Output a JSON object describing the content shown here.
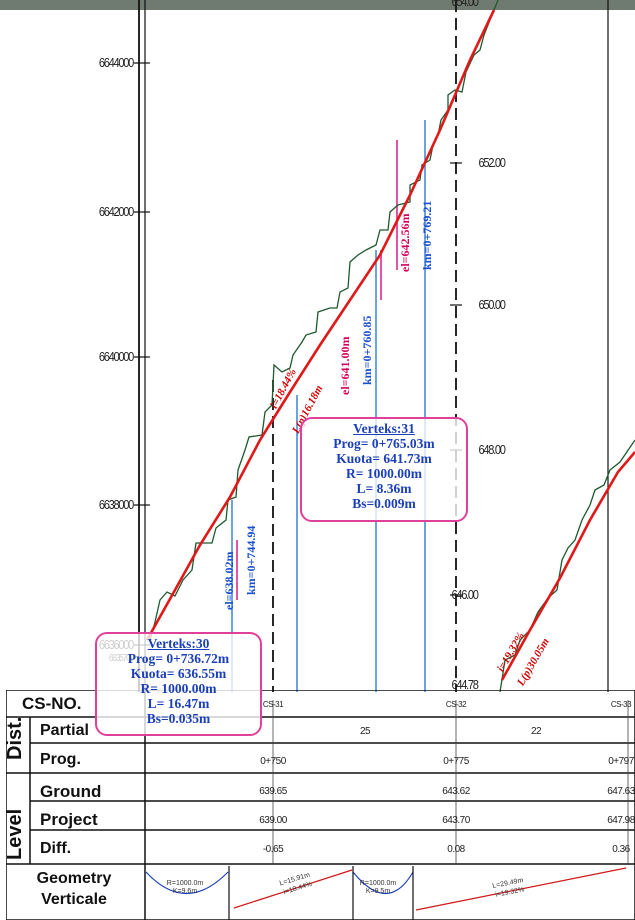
{
  "left_axis_ticks": [
    "6644000",
    "6642000",
    "6640000",
    "6638000",
    "6636000",
    "6635700"
  ],
  "right_axis_ticks": [
    "654.00",
    "652.00",
    "650.00",
    "648.00",
    "646.00",
    "644.78"
  ],
  "vertex_30": {
    "title": "Verteks:30",
    "prog": "Prog=  0+736.72m",
    "kuota": "Kuota=  636.55m",
    "r": "R=  1000.00m",
    "l": "L=  16.47m",
    "bs": "Bs=0.035m"
  },
  "vertex_31": {
    "title": "Verteks:31",
    "prog": "Prog=  0+765.03m",
    "kuota": "Kuota=  641.73m",
    "r": "R=  1000.00m",
    "l": "L=  8.36m",
    "bs": "Bs=0.009m"
  },
  "curve_labels": {
    "el_638": "el=638.02m",
    "km_744": "km=0+744.94",
    "el_641": "el=641.00m",
    "km_760": "km=0+760.85",
    "el_642": "el=642.56m",
    "km_769": "km=0+769.21"
  },
  "grade_labels": {
    "g1_i": "i=18.44%",
    "g1_l": "L(p)16.18m",
    "g2_i": "i=19.32%",
    "g2_l": "L(p)30.05m"
  },
  "table": {
    "labels": {
      "cs_no": "CS-NO.",
      "dist": "Dist.",
      "partial": "Partial",
      "level": "Level",
      "prog": "Prog.",
      "ground": "Ground",
      "project": "Project",
      "diff": "Diff.",
      "geometry": "Geometry",
      "verticale": "Verticale"
    },
    "cs": [
      "CS-31",
      "CS-32",
      "CS-33"
    ],
    "partial": [
      "25",
      "22"
    ],
    "prog": [
      "0+750",
      "0+775",
      "0+797"
    ],
    "ground": [
      "639.65",
      "643.62",
      "647.63"
    ],
    "project": [
      "639.00",
      "643.70",
      "647.98"
    ],
    "diff": [
      "-0.65",
      "0.08",
      "0.36"
    ],
    "geometry": {
      "curve1_r": "R=1000.0m",
      "curve1_k": "K=9.6m",
      "grade1_l": "L=15.91m",
      "grade1_i": "i=18.44%",
      "curve2_r": "R=1000.0m",
      "curve2_k": "K=9.5m",
      "grade2_l": "L=29.49m",
      "grade2_i": "i=19.32%"
    }
  },
  "colors": {
    "design_line": "#e01818",
    "ground_line": "#1e5a2e",
    "station_line": "#2a7bd6",
    "box_border": "#e0409a",
    "box_text": "#1a3fb8"
  }
}
